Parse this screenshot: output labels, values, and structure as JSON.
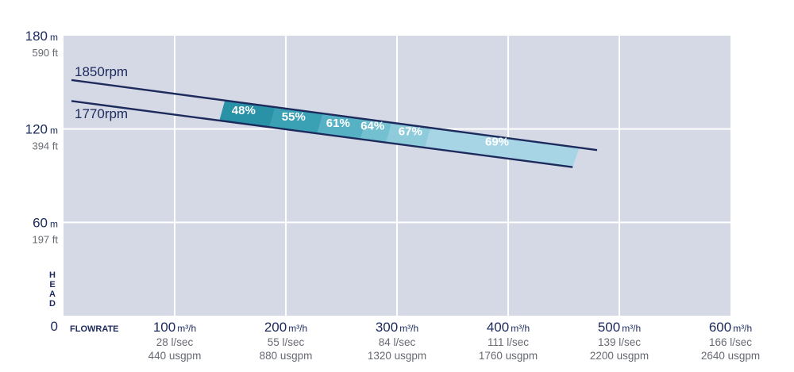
{
  "chart_data": {
    "type": "line",
    "xlabel": "FLOWRATE",
    "ylabel": "HEAD",
    "xlim": [
      0,
      600
    ],
    "ylim": [
      0,
      180
    ],
    "grid": true,
    "x_ticks": [
      {
        "value": 100,
        "main": "100",
        "unit": "m³/h",
        "sub1": "28 l/sec",
        "sub2": "440 usgpm"
      },
      {
        "value": 200,
        "main": "200",
        "unit": "m³/h",
        "sub1": "55 l/sec",
        "sub2": "880 usgpm"
      },
      {
        "value": 300,
        "main": "300",
        "unit": "m³/h",
        "sub1": "84 l/sec",
        "sub2": "1320 usgpm"
      },
      {
        "value": 400,
        "main": "400",
        "unit": "m³/h",
        "sub1": "111 l/sec",
        "sub2": "1760 usgpm"
      },
      {
        "value": 500,
        "main": "500",
        "unit": "m³/h",
        "sub1": "139 l/sec",
        "sub2": "2200 usgpm"
      },
      {
        "value": 600,
        "main": "600",
        "unit": "m³/h",
        "sub1": "166 l/sec",
        "sub2": "2640 usgpm"
      }
    ],
    "y_ticks": [
      {
        "value": 180,
        "main": "180",
        "unit": "m",
        "sub": "590 ft"
      },
      {
        "value": 120,
        "main": "120",
        "unit": "m",
        "sub": "394 ft"
      },
      {
        "value": 60,
        "main": "60",
        "unit": "m",
        "sub": "197 ft"
      },
      {
        "value": 0,
        "main": "0",
        "unit": "",
        "sub": ""
      }
    ],
    "series": [
      {
        "name": "1850rpm",
        "x": [
          0,
          480
        ],
        "y": [
          151.5,
          106.5
        ]
      },
      {
        "name": "1770rpm",
        "x": [
          0,
          458
        ],
        "y": [
          138,
          95.5
        ]
      }
    ],
    "efficiency_zones": [
      {
        "label": "48%",
        "x_start": 140,
        "x_end": 185,
        "label_x": 162,
        "label_y": 132
      },
      {
        "label": "55%",
        "x_start": 185,
        "x_end": 228,
        "label_x": 207,
        "label_y": 128
      },
      {
        "label": "61%",
        "x_start": 228,
        "x_end": 267,
        "label_x": 247,
        "label_y": 124
      },
      {
        "label": "64%",
        "x_start": 267,
        "x_end": 290,
        "label_x": 278,
        "label_y": 122
      },
      {
        "label": "67%",
        "x_start": 290,
        "x_end": 325,
        "label_x": 312,
        "label_y": 118.5
      },
      {
        "label": "69%",
        "x_start": 325,
        "x_end": 458,
        "label_x": 390,
        "label_y": 112
      }
    ],
    "colors": {
      "plot_bg": "#d5d9e5",
      "grid": "#ffffff",
      "curve": "#1c2a5c",
      "zones": [
        "#2a92a7",
        "#3aa0b4",
        "#56b1c4",
        "#73c0d1",
        "#8ecbdb",
        "#a7d5e5"
      ]
    }
  }
}
